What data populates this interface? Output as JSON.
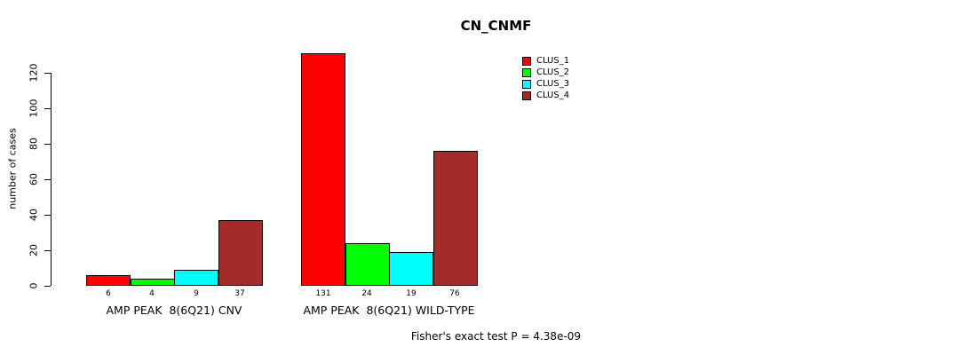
{
  "chart_data": {
    "type": "bar",
    "title": "CN_CNMF",
    "ylabel": "number of cases",
    "xlabel": "",
    "ylim": [
      0,
      132
    ],
    "yticks": [
      0,
      20,
      40,
      60,
      80,
      100,
      120
    ],
    "grid": false,
    "legend_position": "top-center-right",
    "legend": [
      {
        "name": "CLUS_1",
        "color": "#FF0000"
      },
      {
        "name": "CLUS_2",
        "color": "#00FF00"
      },
      {
        "name": "CLUS_3",
        "color": "#00FFFF"
      },
      {
        "name": "CLUS_4",
        "color": "#A52A2A"
      }
    ],
    "categories": [
      "AMP PEAK  8(6Q21) CNV",
      "AMP PEAK  8(6Q21) WILD-TYPE"
    ],
    "series": [
      {
        "name": "CLUS_1",
        "values": [
          6,
          131
        ]
      },
      {
        "name": "CLUS_2",
        "values": [
          4,
          24
        ]
      },
      {
        "name": "CLUS_3",
        "values": [
          9,
          19
        ]
      },
      {
        "name": "CLUS_4",
        "values": [
          37,
          76
        ]
      }
    ],
    "groups": [
      {
        "label": "AMP PEAK  8(6Q21) CNV",
        "values": [
          6,
          4,
          9,
          37
        ]
      },
      {
        "label": "AMP PEAK  8(6Q21) WILD-TYPE",
        "values": [
          131,
          24,
          19,
          76
        ]
      }
    ],
    "footnote": "Fisher's exact test P = 4.38e-09"
  }
}
